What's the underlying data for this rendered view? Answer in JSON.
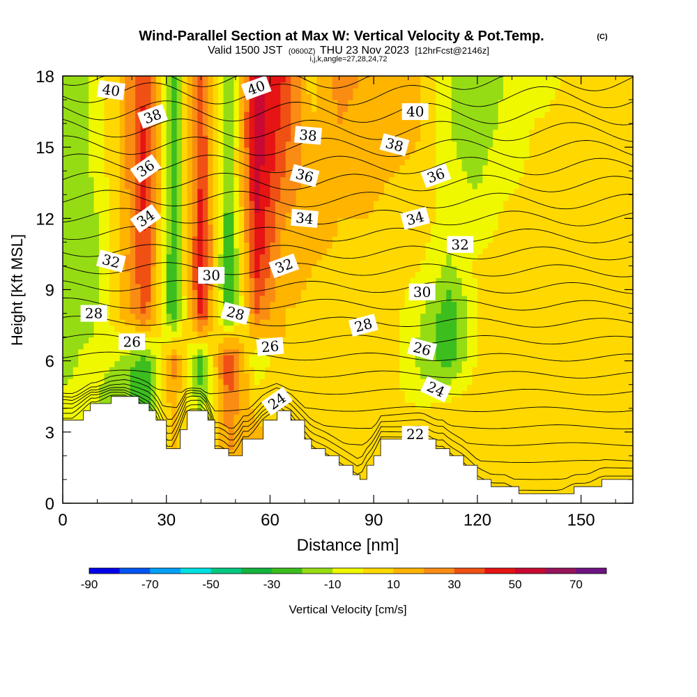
{
  "chart_data": {
    "type": "heatmap",
    "title": "Wind-Parallel Section at Max W: Vertical Velocity & Pot.Temp.",
    "title_mark": "(C)",
    "subtitle_parts": [
      "Valid 1500 JST",
      "(0600Z)",
      "THU 23 Nov 2023",
      "[12hrFcst@2146z]"
    ],
    "subtitle2": "i,j,k,angle=27,28,24,72",
    "xlabel": "Distance [nm]",
    "ylabel": "Height [Kft MSL]",
    "xlim": [
      0,
      165
    ],
    "ylim": [
      0,
      18
    ],
    "x_ticks": [
      0,
      30,
      60,
      90,
      120,
      150
    ],
    "y_ticks": [
      0,
      3,
      6,
      9,
      12,
      15,
      18
    ],
    "colorbar": {
      "label": "Vertical Velocity [cm/s]",
      "min": -90,
      "step": 10,
      "tick_labels": [
        "-90",
        "-70",
        "-50",
        "-30",
        "-10",
        "10",
        "30",
        "50",
        "70"
      ],
      "colors": [
        "#0000e8",
        "#0055f2",
        "#00a0f6",
        "#00e0e0",
        "#00c880",
        "#14b43c",
        "#3cbe1e",
        "#96dc14",
        "#f0f800",
        "#ffd800",
        "#ffb400",
        "#fa8c14",
        "#f05014",
        "#e61414",
        "#c80a32",
        "#96145a",
        "#6e1482"
      ]
    },
    "w_field": {
      "x_km_nm": [
        0,
        8,
        16,
        24,
        32,
        40,
        48,
        56,
        64,
        72,
        80,
        88,
        96,
        104,
        112,
        120,
        128,
        136,
        144,
        152,
        160,
        165
      ],
      "z_kft": [
        0,
        2,
        4,
        6,
        8,
        10,
        12,
        14,
        16,
        18
      ],
      "values": [
        [
          0,
          0,
          0,
          5,
          10,
          5,
          15,
          18,
          0,
          8,
          10,
          6,
          4,
          2,
          6,
          10,
          8,
          6,
          8,
          6,
          4,
          4
        ],
        [
          2,
          0,
          -5,
          -10,
          12,
          -6,
          20,
          15,
          5,
          8,
          5,
          3,
          3,
          0,
          8,
          6,
          4,
          5,
          4,
          3,
          4,
          4
        ],
        [
          -5,
          -8,
          -20,
          -25,
          15,
          -15,
          25,
          8,
          10,
          0,
          5,
          0,
          2,
          0,
          5,
          5,
          5,
          5,
          4,
          4,
          4,
          4
        ],
        [
          -15,
          -5,
          -10,
          -28,
          25,
          -28,
          45,
          -10,
          10,
          5,
          8,
          5,
          3,
          -15,
          -25,
          2,
          4,
          4,
          3,
          3,
          3,
          3
        ],
        [
          -20,
          -15,
          8,
          35,
          -32,
          45,
          -30,
          30,
          10,
          8,
          5,
          8,
          3,
          -10,
          -28,
          0,
          4,
          4,
          3,
          3,
          3,
          3
        ],
        [
          -20,
          -18,
          10,
          40,
          -32,
          50,
          -35,
          45,
          15,
          10,
          8,
          8,
          5,
          0,
          -12,
          2,
          6,
          5,
          4,
          4,
          4,
          4
        ],
        [
          -18,
          -15,
          5,
          45,
          -30,
          45,
          -28,
          50,
          20,
          15,
          10,
          10,
          8,
          5,
          -5,
          -8,
          2,
          3,
          4,
          4,
          4,
          4
        ],
        [
          -15,
          -10,
          8,
          45,
          -25,
          40,
          -20,
          55,
          30,
          15,
          15,
          12,
          10,
          8,
          -8,
          -12,
          -4,
          2,
          3,
          4,
          4,
          4
        ],
        [
          -15,
          -10,
          10,
          45,
          -25,
          40,
          -25,
          60,
          35,
          10,
          20,
          15,
          15,
          10,
          -10,
          -15,
          -8,
          0,
          2,
          2,
          2,
          2
        ],
        [
          -15,
          -10,
          10,
          40,
          -25,
          40,
          -25,
          55,
          40,
          5,
          25,
          18,
          15,
          10,
          -10,
          -15,
          -10,
          -5,
          0,
          0,
          0,
          0
        ]
      ]
    },
    "terrain": {
      "x_nm": [
        0,
        3,
        6,
        8,
        10,
        14,
        18,
        22,
        25,
        27,
        30,
        32,
        34,
        36,
        38,
        40,
        42,
        44,
        46,
        48,
        50,
        52,
        54,
        58,
        62,
        66,
        70,
        72,
        76,
        80,
        84,
        86,
        88,
        90,
        92,
        96,
        100,
        104,
        108,
        110,
        112,
        116,
        120,
        124,
        128,
        132,
        136,
        140,
        144,
        148,
        152,
        156,
        160,
        165
      ],
      "height_kft": [
        3.5,
        3.5,
        3.9,
        4.2,
        4.2,
        4.5,
        4.5,
        4.2,
        3.9,
        3.5,
        2.3,
        2.3,
        3.1,
        3.9,
        3.9,
        3.9,
        3.5,
        2.3,
        2.3,
        2.0,
        2.0,
        2.7,
        2.7,
        3.5,
        3.9,
        3.5,
        2.7,
        2.3,
        2.0,
        1.6,
        1.2,
        1.0,
        1.6,
        2.0,
        2.7,
        2.7,
        2.7,
        2.7,
        2.3,
        2.3,
        2.0,
        1.6,
        1.0,
        0.7,
        0.7,
        0.4,
        0.4,
        0.4,
        0.4,
        0.7,
        0.7,
        1.0,
        1.0,
        1.0
      ]
    },
    "theta_contours": {
      "unit": "C",
      "levels": [
        18,
        19,
        20,
        21,
        22,
        23,
        24,
        25,
        26,
        27,
        28,
        29,
        30,
        31,
        32,
        33,
        34,
        35,
        36,
        37,
        38,
        39,
        40,
        41,
        42
      ],
      "labels": [
        {
          "text": "40",
          "x": 14,
          "y": 17.4,
          "rot": 8
        },
        {
          "text": "38",
          "x": 26,
          "y": 16.3,
          "rot": -20
        },
        {
          "text": "36",
          "x": 24,
          "y": 14.1,
          "rot": -35
        },
        {
          "text": "34",
          "x": 24,
          "y": 12.0,
          "rot": -35
        },
        {
          "text": "32",
          "x": 14,
          "y": 10.2,
          "rot": 15
        },
        {
          "text": "28",
          "x": 9,
          "y": 8.0,
          "rot": 0
        },
        {
          "text": "26",
          "x": 20,
          "y": 6.8,
          "rot": 0
        },
        {
          "text": "30",
          "x": 43,
          "y": 9.6,
          "rot": 0
        },
        {
          "text": "28",
          "x": 50,
          "y": 8.0,
          "rot": 15
        },
        {
          "text": "26",
          "x": 60,
          "y": 6.6,
          "rot": -5
        },
        {
          "text": "24",
          "x": 62,
          "y": 4.3,
          "rot": -35
        },
        {
          "text": "40",
          "x": 56,
          "y": 17.5,
          "rot": -20
        },
        {
          "text": "38",
          "x": 71,
          "y": 15.5,
          "rot": 5
        },
        {
          "text": "36",
          "x": 70,
          "y": 13.8,
          "rot": 15
        },
        {
          "text": "34",
          "x": 70,
          "y": 12.0,
          "rot": 5
        },
        {
          "text": "32",
          "x": 64,
          "y": 10.0,
          "rot": -20
        },
        {
          "text": "28",
          "x": 87,
          "y": 7.5,
          "rot": -15
        },
        {
          "text": "40",
          "x": 102,
          "y": 16.5,
          "rot": 0
        },
        {
          "text": "38",
          "x": 96,
          "y": 15.1,
          "rot": 15
        },
        {
          "text": "36",
          "x": 108,
          "y": 13.8,
          "rot": -20
        },
        {
          "text": "34",
          "x": 102,
          "y": 12.0,
          "rot": -15
        },
        {
          "text": "32",
          "x": 115,
          "y": 10.9,
          "rot": 0
        },
        {
          "text": "30",
          "x": 104,
          "y": 8.9,
          "rot": 0
        },
        {
          "text": "26",
          "x": 104,
          "y": 6.5,
          "rot": 15
        },
        {
          "text": "24",
          "x": 108,
          "y": 4.8,
          "rot": 25
        },
        {
          "text": "22",
          "x": 102,
          "y": 2.9,
          "rot": 0
        }
      ]
    },
    "grid": false
  }
}
